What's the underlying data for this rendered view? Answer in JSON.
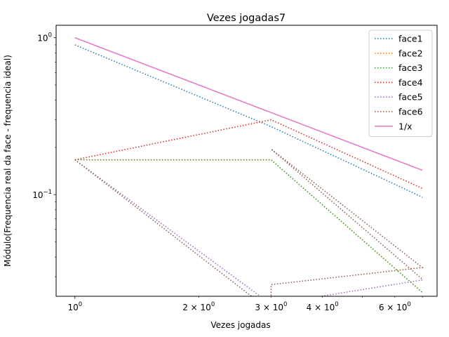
{
  "chart_data": {
    "type": "line",
    "title": "Vezes jogadas7",
    "xlabel": "Vezes jogadas",
    "ylabel": "Módulo(Frequencia real da face - frequencia ideal)",
    "xscale": "log",
    "yscale": "log",
    "xlim": [
      0.9,
      7.6
    ],
    "ylim": [
      0.0225,
      1.2
    ],
    "x_major_ticks": [
      {
        "value": 1,
        "base": "10",
        "exp": "0"
      }
    ],
    "x_minor_ticks": [
      {
        "value": 2,
        "base": "2 × 10",
        "exp": "0"
      },
      {
        "value": 3,
        "base": "3 × 10",
        "exp": "0"
      },
      {
        "value": 4,
        "base": "4 × 10",
        "exp": "0"
      },
      {
        "value": 6,
        "base": "6 × 10",
        "exp": "0"
      }
    ],
    "x_unlabeled_minor": [
      5,
      7
    ],
    "y_major_ticks": [
      {
        "value": 1,
        "base": "10",
        "exp": "0"
      },
      {
        "value": 0.1,
        "base": "10",
        "exp": "−1"
      }
    ],
    "y_unlabeled_minor": [
      0.03,
      0.04,
      0.05,
      0.06,
      0.07,
      0.08,
      0.09,
      0.2,
      0.3,
      0.4,
      0.5,
      0.6,
      0.7,
      0.8,
      0.9
    ],
    "legend_position": "top-right",
    "series": [
      {
        "name": "face1",
        "color": "#1f77b4",
        "style": "dotted",
        "x": [
          1,
          3,
          7
        ],
        "y": [
          0.9,
          0.2714,
          0.0963
        ]
      },
      {
        "name": "face2",
        "color": "#ff7f0e",
        "style": "dotted",
        "x": [
          1,
          3,
          7
        ],
        "y": [
          0.1667,
          0.1667,
          0.0238
        ]
      },
      {
        "name": "face3",
        "color": "#2ca02c",
        "style": "dotted",
        "x": [
          1,
          3,
          7
        ],
        "y": [
          0.1667,
          0.1667,
          0.0238
        ]
      },
      {
        "name": "face4",
        "color": "#d62728",
        "style": "dotted",
        "x": [
          1,
          3,
          7
        ],
        "y": [
          0.1667,
          0.3,
          0.1095
        ]
      },
      {
        "name": "face5",
        "color": "#9467bd",
        "style": "dotted",
        "x": [
          1,
          3,
          7
        ],
        "y": [
          0.1667,
          0.02,
          0.0286
        ]
      },
      {
        "name": "face6",
        "color": "#8c564b",
        "style": "dotted",
        "x": [
          1,
          3,
          3.001,
          7,
          3,
          7
        ],
        "y": [
          0.1667,
          0.018,
          0.0267,
          0.0343,
          0.1952,
          0.0289
        ]
      },
      {
        "name": "1/x",
        "color": "#e377c2",
        "style": "solid",
        "x": [
          1,
          7
        ],
        "y": [
          1,
          0.1429
        ]
      }
    ]
  }
}
